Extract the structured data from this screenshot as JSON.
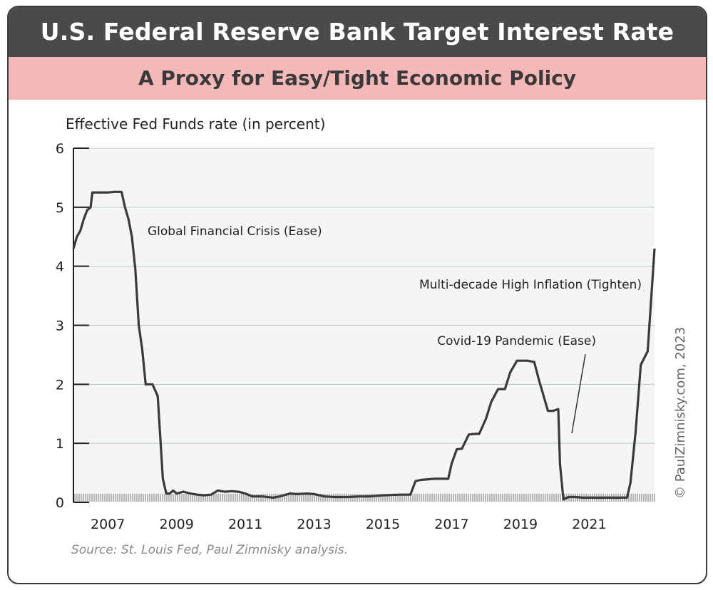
{
  "header": {
    "title": "U.S. Federal Reserve Bank Target Interest Rate",
    "subtitle": "A Proxy for Easy/Tight Economic Policy"
  },
  "footer": {
    "source": "Source: St. Louis Fed, Paul Zimnisky analysis.",
    "copyright": "© PaulZimnisky.com, 2023"
  },
  "colors": {
    "title_bg": "#4a4a4a",
    "subtitle_bg": "#f5b8b8",
    "plot_bg": "#f3f6f4",
    "line": "#3a3a3a"
  },
  "chart_data": {
    "type": "line",
    "title": "U.S. Federal Reserve Bank Target Interest Rate",
    "subtitle": "A Proxy for Easy/Tight Economic Policy",
    "ylabel": "Effective Fed Funds rate (in percent)",
    "xlabel": "",
    "xlim": [
      2006.0,
      2022.9
    ],
    "ylim": [
      0,
      6
    ],
    "grid": true,
    "legend": "none",
    "x_ticks": [
      2007,
      2009,
      2011,
      2013,
      2015,
      2017,
      2019,
      2021
    ],
    "x_tick_labels": [
      "2007",
      "2009",
      "2011",
      "2013",
      "2015",
      "2017",
      "2019",
      "2021"
    ],
    "y_ticks": [
      0,
      1,
      2,
      3,
      4,
      5,
      6
    ],
    "y_tick_labels": [
      "0",
      "1",
      "2",
      "3",
      "4",
      "5",
      "6"
    ],
    "annotations": [
      {
        "text": "Global Financial Crisis (Ease)",
        "x": 2008.2,
        "y": 4.6
      },
      {
        "text": "Multi-decade High Inflation (Tighten)",
        "x": 2021.8,
        "y": 3.6
      },
      {
        "text": "Covid-19 Pandemic (Ease)",
        "x": 2020.4,
        "y": 2.7
      }
    ],
    "series": [
      {
        "x": [
          2006.0,
          2006.1,
          2006.2,
          2006.3,
          2006.4,
          2006.5,
          2006.55,
          2006.8,
          2007.0,
          2007.2,
          2007.4,
          2007.5,
          2007.6,
          2007.7,
          2007.8,
          2007.9,
          2008.0,
          2008.1,
          2008.2,
          2008.3,
          2008.45,
          2008.6,
          2008.7,
          2008.8,
          2008.9,
          2009.0,
          2009.2,
          2009.4,
          2009.6,
          2009.8,
          2010.0,
          2010.2,
          2010.4,
          2010.6,
          2010.8,
          2011.0,
          2011.2,
          2011.5,
          2011.8,
          2012.0,
          2012.3,
          2012.5,
          2012.8,
          2013.0,
          2013.3,
          2013.6,
          2014.0,
          2014.3,
          2014.6,
          2015.0,
          2015.5,
          2015.8,
          2015.95,
          2016.1,
          2016.5,
          2016.9,
          2017.0,
          2017.15,
          2017.3,
          2017.5,
          2017.7,
          2017.8,
          2018.0,
          2018.15,
          2018.35,
          2018.55,
          2018.7,
          2018.9,
          2019.0,
          2019.2,
          2019.4,
          2019.55,
          2019.65,
          2019.8,
          2019.95,
          2020.1,
          2020.15,
          2020.25,
          2020.4,
          2020.6,
          2020.8,
          2021.0,
          2021.3,
          2021.6,
          2021.9,
          2022.1,
          2022.2,
          2022.35,
          2022.5,
          2022.7,
          2022.9
        ],
        "y": [
          4.3,
          4.5,
          4.6,
          4.8,
          4.95,
          5.0,
          5.25,
          5.25,
          5.25,
          5.26,
          5.26,
          5.0,
          4.8,
          4.5,
          3.95,
          3.0,
          2.6,
          2.0,
          2.0,
          2.0,
          1.8,
          0.4,
          0.15,
          0.15,
          0.2,
          0.15,
          0.18,
          0.15,
          0.13,
          0.12,
          0.13,
          0.2,
          0.18,
          0.19,
          0.18,
          0.15,
          0.1,
          0.1,
          0.08,
          0.1,
          0.15,
          0.14,
          0.15,
          0.14,
          0.1,
          0.09,
          0.09,
          0.1,
          0.1,
          0.12,
          0.13,
          0.13,
          0.36,
          0.38,
          0.4,
          0.4,
          0.66,
          0.9,
          0.91,
          1.15,
          1.16,
          1.16,
          1.42,
          1.7,
          1.92,
          1.92,
          2.2,
          2.4,
          2.4,
          2.4,
          2.38,
          2.05,
          1.85,
          1.55,
          1.55,
          1.58,
          0.65,
          0.05,
          0.09,
          0.09,
          0.08,
          0.08,
          0.08,
          0.08,
          0.08,
          0.08,
          0.33,
          1.2,
          2.33,
          2.56,
          4.3
        ]
      }
    ]
  }
}
